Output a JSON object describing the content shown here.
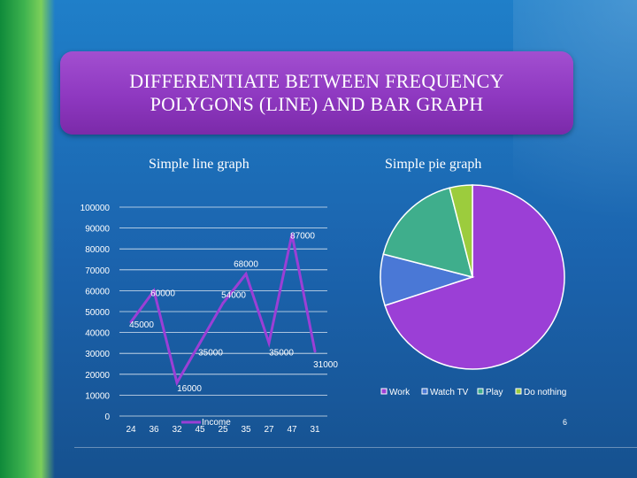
{
  "slide": {
    "title": "DIFFERENTIATE BETWEEN FREQUENCY\nPOLYGONS (LINE) AND BAR GRAPH",
    "line_caption": "Simple line graph",
    "pie_caption": "Simple pie graph",
    "page_number": "6"
  },
  "colors": {
    "line": "#9b3fd6",
    "pie": [
      "#9b3fd6",
      "#4a78d6",
      "#3fae8c",
      "#9ccc3d"
    ]
  },
  "chart_data": [
    {
      "type": "line",
      "categories": [
        "24",
        "36",
        "32",
        "45",
        "25",
        "35",
        "27",
        "47",
        "31"
      ],
      "series": [
        {
          "name": "Income",
          "values": [
            45000,
            60000,
            16000,
            35000,
            54000,
            68000,
            35000,
            87000,
            31000
          ]
        }
      ],
      "data_labels": [
        "45000",
        "60000",
        "16000",
        "35000",
        "54000",
        "68000",
        "35000",
        "87000",
        "31000"
      ],
      "ylim": [
        0,
        100000
      ],
      "yticks": [
        "0",
        "10000",
        "20000",
        "30000",
        "40000",
        "50000",
        "60000",
        "70000",
        "80000",
        "90000",
        "100000"
      ],
      "grid": true,
      "legend": "bottom"
    },
    {
      "type": "pie",
      "categories": [
        "Work",
        "Watch TV",
        "Play",
        "Do nothing"
      ],
      "values": [
        70,
        9,
        17,
        4
      ],
      "legend": "bottom"
    }
  ]
}
